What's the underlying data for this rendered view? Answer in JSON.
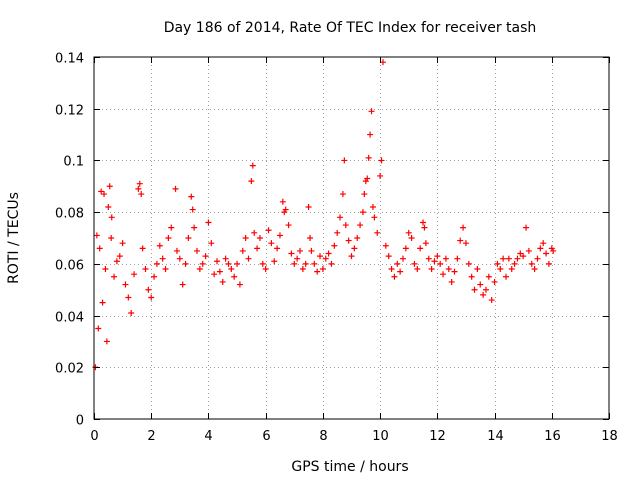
{
  "chart_data": {
    "type": "scatter",
    "title": "Day 186 of 2014, Rate Of TEC Index for receiver tash",
    "xlabel": "GPS time / hours",
    "ylabel": "ROTI / TECUs",
    "xlim": [
      0,
      18
    ],
    "ylim": [
      0,
      0.14
    ],
    "xticks": [
      0,
      2,
      4,
      6,
      8,
      10,
      12,
      14,
      16,
      18
    ],
    "yticks": [
      0,
      0.02,
      0.04,
      0.06,
      0.08,
      0.1,
      0.12,
      0.14
    ],
    "xtick_labels": [
      "0",
      "2",
      "4",
      "6",
      "8",
      "10",
      "12",
      "14",
      "16",
      "18"
    ],
    "ytick_labels": [
      "0",
      "0.02",
      "0.04",
      "0.06",
      "0.08",
      "0.1",
      "0.12",
      "0.14"
    ],
    "grid": true,
    "marker": "+",
    "color": "#ff0000",
    "series": [
      {
        "name": "ROTI",
        "points": [
          [
            0.05,
            0.02
          ],
          [
            0.1,
            0.071
          ],
          [
            0.15,
            0.035
          ],
          [
            0.2,
            0.066
          ],
          [
            0.25,
            0.088
          ],
          [
            0.3,
            0.045
          ],
          [
            0.35,
            0.087
          ],
          [
            0.4,
            0.058
          ],
          [
            0.45,
            0.03
          ],
          [
            0.5,
            0.082
          ],
          [
            0.55,
            0.09
          ],
          [
            0.6,
            0.07
          ],
          [
            0.62,
            0.078
          ],
          [
            0.7,
            0.055
          ],
          [
            0.8,
            0.061
          ],
          [
            0.9,
            0.063
          ],
          [
            1.0,
            0.068
          ],
          [
            1.1,
            0.052
          ],
          [
            1.2,
            0.047
          ],
          [
            1.3,
            0.041
          ],
          [
            1.4,
            0.056
          ],
          [
            1.55,
            0.089
          ],
          [
            1.6,
            0.091
          ],
          [
            1.65,
            0.087
          ],
          [
            1.7,
            0.066
          ],
          [
            1.8,
            0.058
          ],
          [
            1.9,
            0.05
          ],
          [
            2.0,
            0.047
          ],
          [
            2.1,
            0.055
          ],
          [
            2.2,
            0.06
          ],
          [
            2.3,
            0.067
          ],
          [
            2.4,
            0.062
          ],
          [
            2.5,
            0.058
          ],
          [
            2.6,
            0.07
          ],
          [
            2.7,
            0.074
          ],
          [
            2.85,
            0.089
          ],
          [
            2.9,
            0.065
          ],
          [
            3.0,
            0.062
          ],
          [
            3.1,
            0.052
          ],
          [
            3.2,
            0.06
          ],
          [
            3.3,
            0.07
          ],
          [
            3.4,
            0.086
          ],
          [
            3.45,
            0.081
          ],
          [
            3.5,
            0.074
          ],
          [
            3.6,
            0.065
          ],
          [
            3.7,
            0.058
          ],
          [
            3.8,
            0.06
          ],
          [
            3.9,
            0.063
          ],
          [
            4.0,
            0.076
          ],
          [
            4.1,
            0.068
          ],
          [
            4.2,
            0.056
          ],
          [
            4.3,
            0.061
          ],
          [
            4.4,
            0.057
          ],
          [
            4.5,
            0.053
          ],
          [
            4.6,
            0.062
          ],
          [
            4.7,
            0.06
          ],
          [
            4.8,
            0.058
          ],
          [
            4.9,
            0.055
          ],
          [
            5.0,
            0.06
          ],
          [
            5.1,
            0.052
          ],
          [
            5.2,
            0.065
          ],
          [
            5.3,
            0.07
          ],
          [
            5.4,
            0.062
          ],
          [
            5.5,
            0.092
          ],
          [
            5.55,
            0.098
          ],
          [
            5.6,
            0.072
          ],
          [
            5.7,
            0.066
          ],
          [
            5.8,
            0.07
          ],
          [
            5.9,
            0.06
          ],
          [
            6.0,
            0.058
          ],
          [
            6.1,
            0.073
          ],
          [
            6.2,
            0.068
          ],
          [
            6.3,
            0.061
          ],
          [
            6.4,
            0.066
          ],
          [
            6.5,
            0.071
          ],
          [
            6.6,
            0.084
          ],
          [
            6.65,
            0.08
          ],
          [
            6.7,
            0.081
          ],
          [
            6.8,
            0.075
          ],
          [
            6.9,
            0.064
          ],
          [
            7.0,
            0.06
          ],
          [
            7.1,
            0.062
          ],
          [
            7.2,
            0.065
          ],
          [
            7.3,
            0.058
          ],
          [
            7.4,
            0.06
          ],
          [
            7.5,
            0.082
          ],
          [
            7.55,
            0.07
          ],
          [
            7.6,
            0.065
          ],
          [
            7.7,
            0.06
          ],
          [
            7.8,
            0.057
          ],
          [
            7.9,
            0.063
          ],
          [
            8.0,
            0.058
          ],
          [
            8.1,
            0.062
          ],
          [
            8.2,
            0.064
          ],
          [
            8.3,
            0.06
          ],
          [
            8.4,
            0.067
          ],
          [
            8.5,
            0.072
          ],
          [
            8.6,
            0.078
          ],
          [
            8.7,
            0.087
          ],
          [
            8.75,
            0.1
          ],
          [
            8.8,
            0.075
          ],
          [
            8.9,
            0.069
          ],
          [
            9.0,
            0.063
          ],
          [
            9.1,
            0.066
          ],
          [
            9.2,
            0.07
          ],
          [
            9.3,
            0.075
          ],
          [
            9.4,
            0.08
          ],
          [
            9.45,
            0.087
          ],
          [
            9.5,
            0.092
          ],
          [
            9.55,
            0.093
          ],
          [
            9.6,
            0.101
          ],
          [
            9.65,
            0.11
          ],
          [
            9.7,
            0.119
          ],
          [
            9.75,
            0.082
          ],
          [
            9.8,
            0.078
          ],
          [
            9.9,
            0.072
          ],
          [
            10.0,
            0.094
          ],
          [
            10.05,
            0.1
          ],
          [
            10.1,
            0.138
          ],
          [
            10.2,
            0.067
          ],
          [
            10.3,
            0.063
          ],
          [
            10.4,
            0.058
          ],
          [
            10.5,
            0.055
          ],
          [
            10.6,
            0.06
          ],
          [
            10.7,
            0.057
          ],
          [
            10.8,
            0.062
          ],
          [
            10.9,
            0.066
          ],
          [
            11.0,
            0.072
          ],
          [
            11.1,
            0.07
          ],
          [
            11.2,
            0.06
          ],
          [
            11.3,
            0.058
          ],
          [
            11.4,
            0.066
          ],
          [
            11.5,
            0.076
          ],
          [
            11.55,
            0.074
          ],
          [
            11.6,
            0.068
          ],
          [
            11.7,
            0.062
          ],
          [
            11.8,
            0.058
          ],
          [
            11.9,
            0.061
          ],
          [
            12.0,
            0.063
          ],
          [
            12.1,
            0.06
          ],
          [
            12.2,
            0.056
          ],
          [
            12.3,
            0.062
          ],
          [
            12.4,
            0.058
          ],
          [
            12.5,
            0.053
          ],
          [
            12.6,
            0.057
          ],
          [
            12.7,
            0.062
          ],
          [
            12.8,
            0.069
          ],
          [
            12.9,
            0.074
          ],
          [
            13.0,
            0.068
          ],
          [
            13.1,
            0.06
          ],
          [
            13.2,
            0.055
          ],
          [
            13.3,
            0.05
          ],
          [
            13.4,
            0.058
          ],
          [
            13.5,
            0.052
          ],
          [
            13.6,
            0.048
          ],
          [
            13.7,
            0.05
          ],
          [
            13.8,
            0.055
          ],
          [
            13.9,
            0.046
          ],
          [
            14.0,
            0.053
          ],
          [
            14.1,
            0.06
          ],
          [
            14.2,
            0.058
          ],
          [
            14.3,
            0.062
          ],
          [
            14.4,
            0.055
          ],
          [
            14.5,
            0.062
          ],
          [
            14.6,
            0.058
          ],
          [
            14.7,
            0.06
          ],
          [
            14.8,
            0.062
          ],
          [
            14.9,
            0.064
          ],
          [
            15.0,
            0.063
          ],
          [
            15.1,
            0.074
          ],
          [
            15.2,
            0.065
          ],
          [
            15.3,
            0.06
          ],
          [
            15.4,
            0.058
          ],
          [
            15.5,
            0.062
          ],
          [
            15.6,
            0.066
          ],
          [
            15.7,
            0.068
          ],
          [
            15.8,
            0.064
          ],
          [
            15.9,
            0.06
          ],
          [
            16.0,
            0.066
          ],
          [
            16.05,
            0.065
          ]
        ]
      }
    ]
  }
}
